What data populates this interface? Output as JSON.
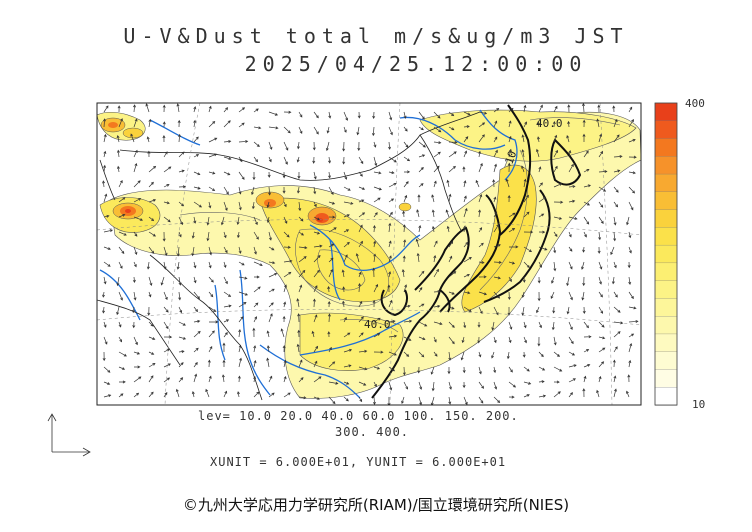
{
  "header": {
    "title": "U-V&Dust total m/s&ug/m3 JST",
    "datetime": "2025/04/25.12:00:00"
  },
  "map": {
    "contour_label_1": "40.0",
    "contour_label_2": "40.0",
    "contour_label_3": "10"
  },
  "colorbar": {
    "max_label": "400",
    "min_label": "10",
    "colors": [
      "#e8401a",
      "#ef5a1e",
      "#f3781f",
      "#f6922a",
      "#f8a930",
      "#f9be35",
      "#fad23c",
      "#fbe14a",
      "#fbe95c",
      "#fcef72",
      "#fcf386",
      "#fdf69a",
      "#fdf8ad",
      "#fefac0",
      "#fefcd2",
      "#fffde4",
      "#ffffff"
    ]
  },
  "footer": {
    "levels_line1": "lev= 10.0 20.0 40.0 60.0 100. 150. 200.",
    "levels_line2": "300. 400.",
    "units": "XUNIT = 6.000E+01, YUNIT = 6.000E+01",
    "credit": "©九州大学応用力学研究所(RIAM)/国立環境研究所(NIES)"
  }
}
